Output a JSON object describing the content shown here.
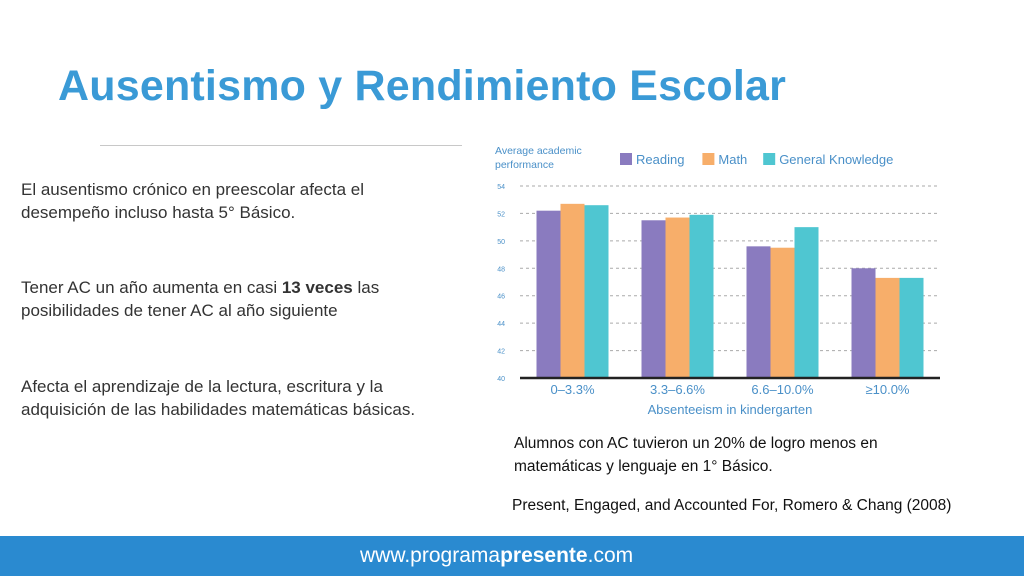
{
  "slide": {
    "title": "Ausentismo y Rendimiento Escolar",
    "bullets": [
      {
        "text": "El ausentismo crónico en preescolar  afecta el desempeño incluso hasta 5° Básico."
      },
      {
        "before": "Tener AC un año aumenta en casi ",
        "bold": "13 veces",
        "after": " las posibilidades de tener AC al año siguiente"
      },
      {
        "text": "Afecta el aprendizaje de la lectura, escritura y la adquisición de las habilidades matemáticas básicas."
      }
    ],
    "caption": "Alumnos con AC tuvieron un 20% de logro menos en matemáticas y lenguaje en 1° Básico.",
    "source": "Present, Engaged, and Accounted For, Romero & Chang (2008)",
    "footer": {
      "prefix": "www.programa",
      "bold": "presente",
      "suffix": ".com",
      "color": "#2a8ad0"
    },
    "title_color": "#3a9ad6"
  },
  "chart_data": {
    "type": "bar",
    "ylabel": "Average academic performance",
    "xlabel": "Absenteeism in kindergarten",
    "categories": [
      "0–3.3%",
      "3.3–6.6%",
      "6.6–10.0%",
      "≥10.0%"
    ],
    "series": [
      {
        "name": "Reading",
        "color": "#8a7bbf",
        "values": [
          52.2,
          51.5,
          49.6,
          48.0
        ]
      },
      {
        "name": "Math",
        "color": "#f7ae6a",
        "values": [
          52.7,
          51.7,
          49.5,
          47.3
        ]
      },
      {
        "name": "General Knowledge",
        "color": "#4fc6d1",
        "values": [
          52.6,
          51.9,
          51.0,
          47.3
        ]
      }
    ],
    "ylim": [
      40,
      54
    ],
    "yticks": [
      "40",
      "42",
      "44",
      "46",
      "48",
      "50",
      "52",
      "54"
    ],
    "grid": true,
    "legend": "top"
  }
}
